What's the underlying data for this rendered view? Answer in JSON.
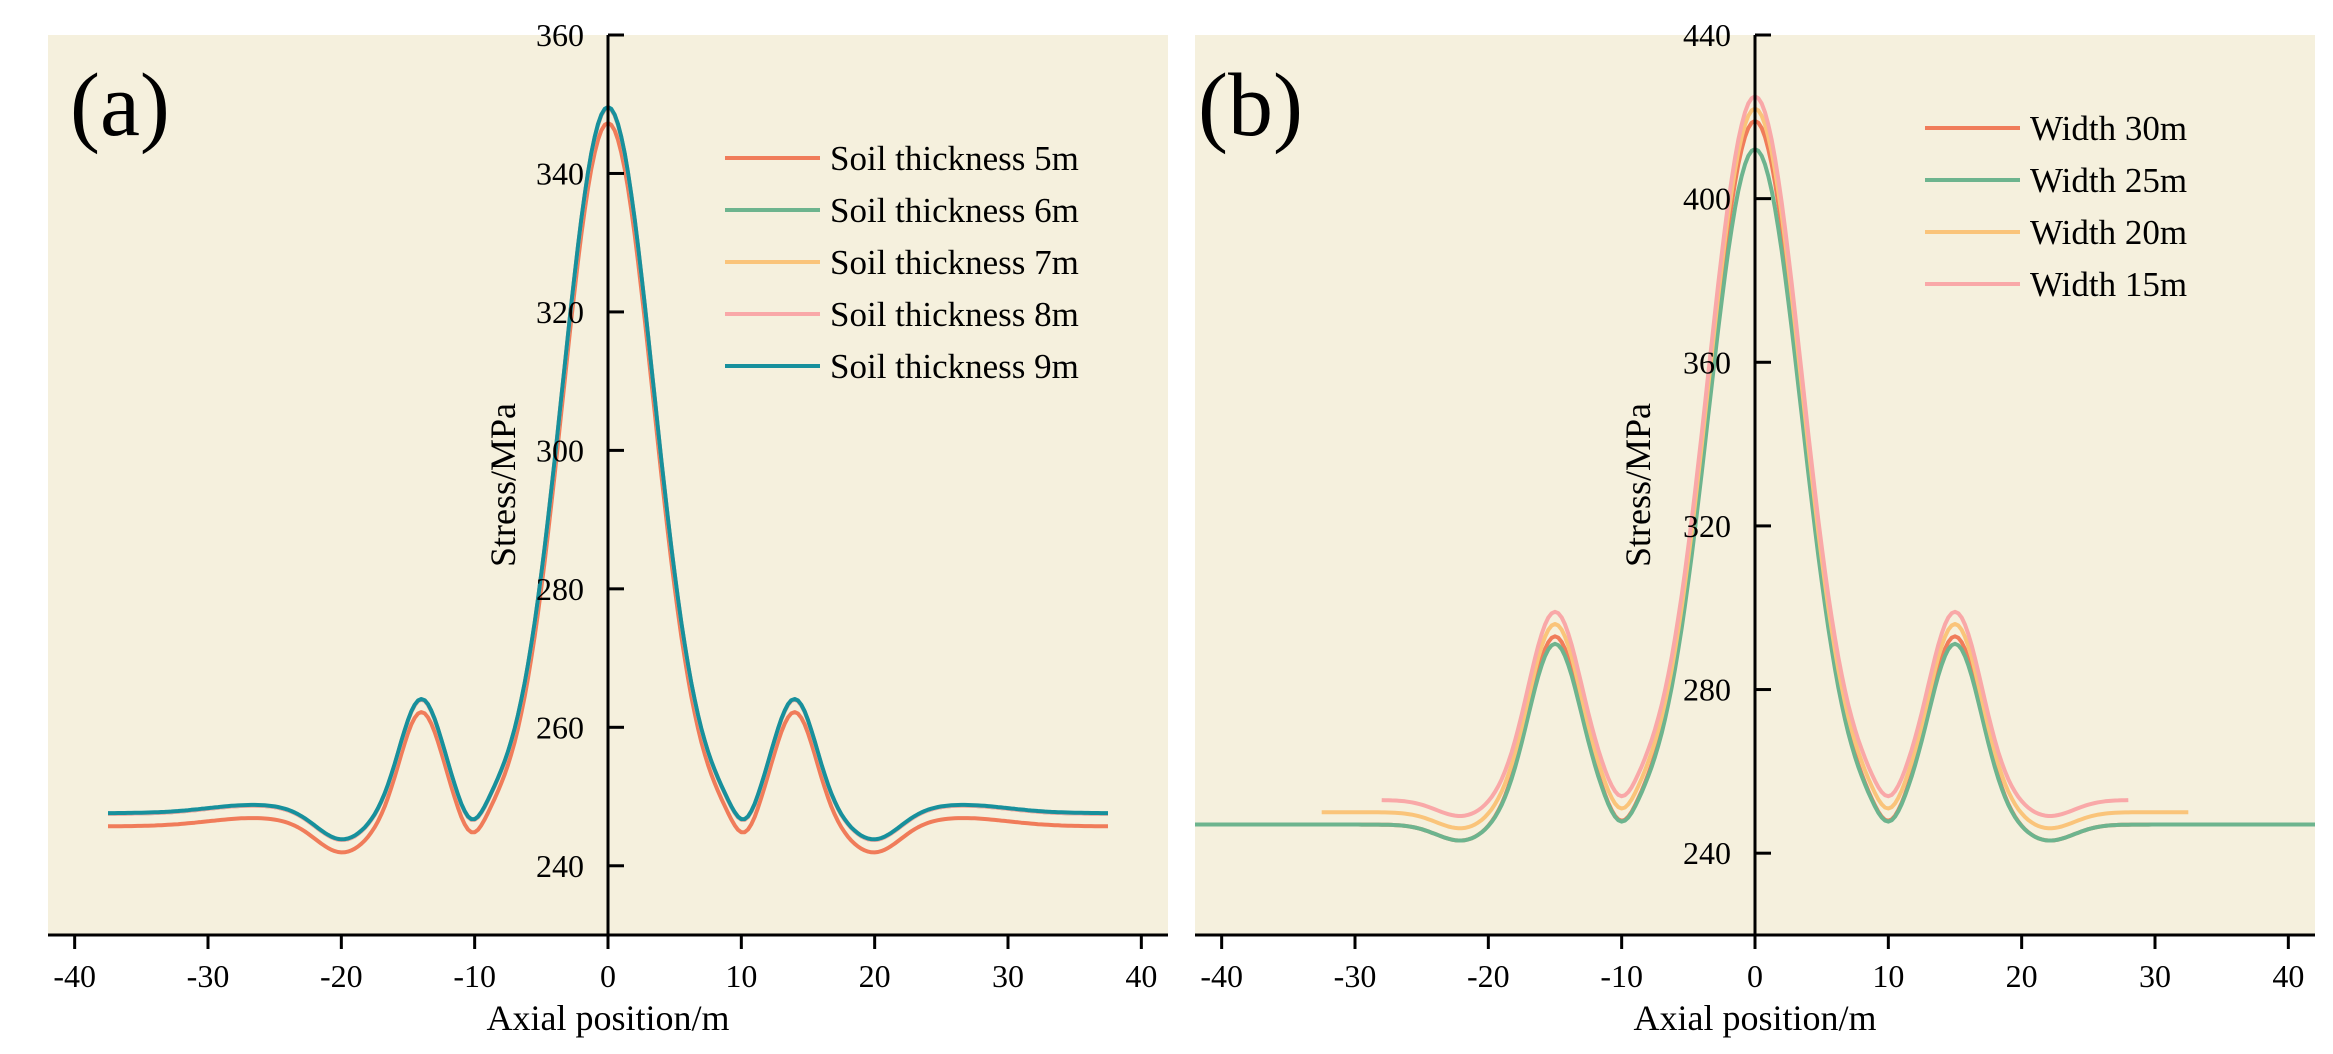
{
  "chart_data": [
    {
      "type": "line",
      "panel_label": "(a)",
      "xlabel": "Axial position/m",
      "ylabel": "Stress/MPa",
      "xlim": [
        -42,
        42
      ],
      "ylim": [
        230,
        360
      ],
      "xticks": [
        -40,
        -30,
        -20,
        -10,
        0,
        10,
        20,
        30,
        40
      ],
      "yticks": [
        240,
        260,
        280,
        300,
        320,
        340,
        360
      ],
      "legend_position": "top-right",
      "series": [
        {
          "name": "Soil thickness 5m",
          "color": "#f07c5a",
          "x_range": [
            -37.5,
            37.5
          ],
          "base": 245.7,
          "profile": 1.0
        },
        {
          "name": "Soil thickness 6m",
          "color": "#6db48e",
          "x_range": [
            -37.5,
            37.5
          ],
          "base": 247.5,
          "profile": 1.0
        },
        {
          "name": "Soil thickness 7m",
          "color": "#fac47a",
          "x_range": [
            -37.5,
            37.5
          ],
          "base": 247.5,
          "profile": 1.0
        },
        {
          "name": "Soil thickness 8m",
          "color": "#f9a8a8",
          "x_range": [
            -37.5,
            37.5
          ],
          "base": 247.5,
          "profile": 1.0
        },
        {
          "name": "Soil thickness 9m",
          "color": "#17909c",
          "x_range": [
            -37.5,
            37.5
          ],
          "base": 247.6,
          "profile": 1.0
        }
      ]
    },
    {
      "type": "line",
      "panel_label": "(b)",
      "xlabel": "Axial position/m",
      "ylabel": "Stress/MPa",
      "xlim": [
        -42,
        42
      ],
      "ylim": [
        220,
        440
      ],
      "xticks": [
        -40,
        -30,
        -20,
        -10,
        0,
        10,
        20,
        30,
        40
      ],
      "yticks": [
        240,
        280,
        320,
        360,
        400,
        440
      ],
      "legend_position": "top-right",
      "series": [
        {
          "name": "Width 30m",
          "color": "#f07c5a",
          "x_range": [
            -42,
            42
          ],
          "base": 247,
          "profile": 1.0
        },
        {
          "name": "Width 25m",
          "color": "#6db48e",
          "x_range": [
            -42,
            42
          ],
          "base": 247,
          "profile": 0.96
        },
        {
          "name": "Width 20m",
          "color": "#fac47a",
          "x_range": [
            -32.5,
            32.5
          ],
          "base": 250,
          "profile": 1.0
        },
        {
          "name": "Width 15m",
          "color": "#f9a8a8",
          "x_range": [
            -28,
            28
          ],
          "base": 253,
          "profile": 1.0
        }
      ]
    }
  ]
}
